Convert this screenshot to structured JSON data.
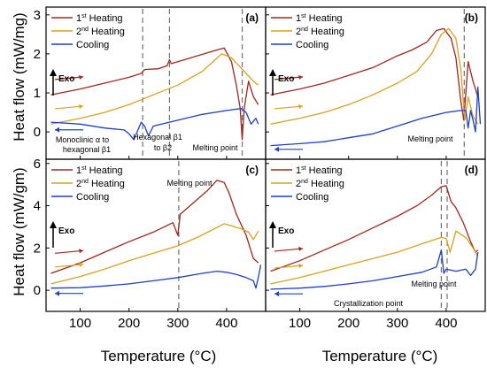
{
  "figure": {
    "ylabel": "Heat flow (mW/mg)",
    "ylabel_lower": "Heat flow (mW/gm)",
    "xlabel": "Temperature (°C)",
    "legend": [
      {
        "base": "1",
        "sup": "st",
        "rest": " Heating",
        "color": "#a0261f"
      },
      {
        "base": "2",
        "sup": "nd",
        "rest": " Heating",
        "color": "#d6a21f"
      },
      {
        "base": "",
        "sup": "",
        "rest": "Cooling",
        "color": "#1f3fc4"
      }
    ],
    "exo_label": "Exo",
    "y_ticks_top": [
      "0",
      "1",
      "2",
      "3"
    ],
    "y_ticks_bottom": [
      "0",
      "2",
      "4",
      "6"
    ],
    "x_ticks": [
      "100",
      "200",
      "300",
      "400"
    ]
  },
  "chart_data": [
    {
      "type": "line",
      "panel": "(a)",
      "xlim": [
        30,
        480
      ],
      "ylim": [
        -0.7,
        3.2
      ],
      "vlines": [
        228,
        283,
        432
      ],
      "annotations": [
        "Monoclinic α  to",
        "hexagonal β1",
        "Hexagonal β1",
        "to β2",
        "Melting point"
      ],
      "series": [
        {
          "name": "1st Heating",
          "x": [
            40,
            100,
            150,
            200,
            225,
            232,
            260,
            278,
            283,
            287,
            300,
            340,
            380,
            395,
            410,
            420,
            428,
            432,
            436,
            445,
            455,
            465
          ],
          "y": [
            0.95,
            1.1,
            1.25,
            1.4,
            1.5,
            1.6,
            1.62,
            1.7,
            1.85,
            1.75,
            1.8,
            1.95,
            2.1,
            2.15,
            1.8,
            1.2,
            0.6,
            -0.2,
            0.6,
            1.3,
            0.9,
            0.7
          ]
        },
        {
          "name": "2nd Heating",
          "x": [
            40,
            100,
            150,
            200,
            250,
            300,
            350,
            390,
            410,
            425,
            440,
            455,
            465
          ],
          "y": [
            0.2,
            0.35,
            0.5,
            0.7,
            0.95,
            1.2,
            1.55,
            2.0,
            1.9,
            1.7,
            1.5,
            1.3,
            1.2
          ]
        },
        {
          "name": "Cooling",
          "x": [
            40,
            100,
            150,
            190,
            200,
            210,
            225,
            232,
            240,
            250,
            300,
            350,
            400,
            430,
            440,
            450,
            460,
            465
          ],
          "y": [
            0.25,
            0.2,
            0.1,
            0.05,
            -0.05,
            -0.2,
            0.25,
            0.15,
            -0.1,
            0.15,
            0.3,
            0.45,
            0.55,
            0.6,
            0.5,
            0.2,
            0.35,
            0.2
          ]
        }
      ]
    },
    {
      "type": "line",
      "panel": "(b)",
      "xlim": [
        30,
        480
      ],
      "ylim": [
        -0.7,
        3.2
      ],
      "vlines": [
        437
      ],
      "annotations": [
        "Melting point"
      ],
      "series": [
        {
          "name": "1st Heating",
          "x": [
            40,
            100,
            150,
            200,
            250,
            300,
            330,
            360,
            380,
            395,
            410,
            420,
            430,
            436,
            445,
            455,
            465
          ],
          "y": [
            0.95,
            1.1,
            1.25,
            1.45,
            1.65,
            1.95,
            2.1,
            2.3,
            2.6,
            2.65,
            2.4,
            1.9,
            0.8,
            0.3,
            1.8,
            1.3,
            0.9
          ]
        },
        {
          "name": "2nd Heating",
          "x": [
            40,
            100,
            150,
            200,
            250,
            300,
            340,
            370,
            390,
            405,
            420,
            430,
            438,
            445,
            455,
            465
          ],
          "y": [
            0.2,
            0.35,
            0.5,
            0.7,
            0.95,
            1.25,
            1.55,
            2.0,
            2.5,
            2.65,
            2.4,
            1.6,
            0.3,
            0.9,
            0.4,
            0.2
          ]
        },
        {
          "name": "Cooling",
          "x": [
            40,
            100,
            150,
            200,
            250,
            300,
            350,
            400,
            430,
            440,
            445,
            450,
            455,
            460,
            465,
            470
          ],
          "y": [
            -0.35,
            -0.3,
            -0.25,
            -0.15,
            -0.05,
            0.15,
            0.35,
            0.5,
            0.55,
            0.55,
            0.1,
            0.55,
            0.3,
            0.0,
            1.15,
            0.2
          ]
        }
      ]
    },
    {
      "type": "line",
      "panel": "(c)",
      "xlim": [
        30,
        480
      ],
      "ylim": [
        -1.0,
        6.2
      ],
      "vlines": [
        302
      ],
      "annotations": [
        "Melting point"
      ],
      "series": [
        {
          "name": "1st Heating",
          "x": [
            40,
            100,
            150,
            200,
            250,
            290,
            300,
            305,
            330,
            360,
            380,
            395,
            405,
            420,
            440,
            455,
            465
          ],
          "y": [
            0.8,
            1.3,
            1.8,
            2.3,
            2.75,
            3.2,
            2.6,
            3.6,
            4.1,
            4.7,
            5.2,
            5.1,
            4.6,
            3.6,
            2.6,
            1.5,
            1.3
          ]
        },
        {
          "name": "2nd Heating",
          "x": [
            40,
            100,
            150,
            200,
            250,
            300,
            340,
            370,
            395,
            410,
            430,
            445,
            455,
            465
          ],
          "y": [
            0.3,
            0.65,
            1.0,
            1.4,
            1.75,
            2.1,
            2.5,
            2.85,
            3.15,
            3.05,
            2.9,
            2.75,
            2.4,
            2.8
          ]
        },
        {
          "name": "Cooling",
          "x": [
            40,
            100,
            150,
            200,
            250,
            300,
            350,
            380,
            400,
            420,
            440,
            455,
            460,
            465,
            470
          ],
          "y": [
            0.1,
            0.12,
            0.2,
            0.3,
            0.45,
            0.6,
            0.8,
            0.9,
            0.85,
            0.75,
            0.6,
            0.45,
            0.1,
            0.6,
            1.2
          ]
        }
      ]
    },
    {
      "type": "line",
      "panel": "(d)",
      "xlim": [
        30,
        480
      ],
      "ylim": [
        -1.0,
        6.2
      ],
      "vlines": [
        390,
        402
      ],
      "annotations": [
        "Melting point",
        "Crystallization point"
      ],
      "series": [
        {
          "name": "1st Heating",
          "x": [
            40,
            100,
            150,
            200,
            250,
            300,
            340,
            370,
            390,
            400,
            410,
            420,
            435,
            450,
            460,
            465
          ],
          "y": [
            0.9,
            1.4,
            1.9,
            2.4,
            2.95,
            3.5,
            4.0,
            4.5,
            4.9,
            4.95,
            4.2,
            3.9,
            3.2,
            2.3,
            1.8,
            1.9
          ]
        },
        {
          "name": "2nd Heating",
          "x": [
            40,
            100,
            150,
            200,
            250,
            300,
            350,
            390,
            400,
            408,
            420,
            440,
            455,
            465
          ],
          "y": [
            0.3,
            0.6,
            0.9,
            1.2,
            1.5,
            1.8,
            2.2,
            2.5,
            2.45,
            1.8,
            2.8,
            2.5,
            2.0,
            1.6
          ]
        },
        {
          "name": "Cooling",
          "x": [
            40,
            100,
            150,
            200,
            250,
            300,
            350,
            380,
            390,
            395,
            400,
            420,
            440,
            450,
            460,
            465
          ],
          "y": [
            0.05,
            0.1,
            0.18,
            0.3,
            0.45,
            0.65,
            0.85,
            1.1,
            1.9,
            0.8,
            1.0,
            0.9,
            1.0,
            0.7,
            1.0,
            1.8
          ]
        }
      ]
    }
  ]
}
